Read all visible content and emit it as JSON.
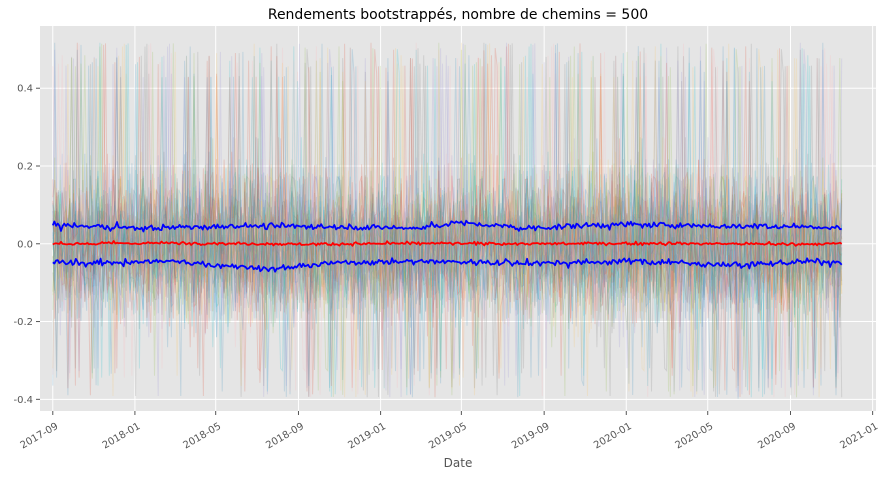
{
  "chart_data": {
    "type": "line",
    "title": "Rendements bootstrappés, nombre de chemins = 500",
    "xlabel": "Date",
    "ylabel": "",
    "x_range": [
      "2017-08-13",
      "2021-01-06"
    ],
    "ylim": [
      -0.43,
      0.56
    ],
    "x_tick_labels": [
      "2017-09",
      "2018-01",
      "2018-05",
      "2018-09",
      "2019-01",
      "2019-05",
      "2019-09",
      "2020-01",
      "2020-05",
      "2020-09",
      "2021-01"
    ],
    "y_tick_labels": [
      "-0.4",
      "-0.2",
      "0.0",
      "0.2",
      "0.4"
    ],
    "grid": true,
    "background": "#e5e5e5",
    "bootstrap_paths": {
      "count": 500,
      "start": "2017-09-01",
      "end": "2020-11-16",
      "min_value": -0.4,
      "max_value": 0.52,
      "opacity": 0.2
    },
    "series": [
      {
        "role": "upper-band",
        "color": "#0000ff",
        "x": [
          "2017-09-01",
          "2017-10-10",
          "2018-01-15",
          "2018-06-10",
          "2018-10-01",
          "2019-03-01",
          "2019-04-25",
          "2019-08-01",
          "2019-12-20",
          "2020-06-01",
          "2020-09-15",
          "2020-11-16"
        ],
        "values": [
          0.05,
          0.045,
          0.04,
          0.046,
          0.045,
          0.04,
          0.055,
          0.04,
          0.05,
          0.045,
          0.045,
          0.04
        ]
      },
      {
        "role": "mean",
        "color": "#ff0000",
        "x": [
          "2017-09-01",
          "2018-03-01",
          "2018-09-01",
          "2019-03-01",
          "2019-09-01",
          "2020-03-01",
          "2020-09-01",
          "2020-11-16"
        ],
        "values": [
          0.0,
          0.002,
          -0.001,
          0.001,
          0.0,
          0.001,
          -0.001,
          0.0
        ]
      },
      {
        "role": "lower-band",
        "color": "#0000ff",
        "x": [
          "2017-09-01",
          "2017-10-15",
          "2018-02-20",
          "2018-07-25",
          "2018-11-01",
          "2019-03-15",
          "2019-08-01",
          "2020-01-10",
          "2020-06-20",
          "2020-10-01",
          "2020-11-16"
        ],
        "values": [
          -0.048,
          -0.05,
          -0.045,
          -0.065,
          -0.048,
          -0.045,
          -0.05,
          -0.045,
          -0.055,
          -0.045,
          -0.05
        ]
      }
    ]
  }
}
